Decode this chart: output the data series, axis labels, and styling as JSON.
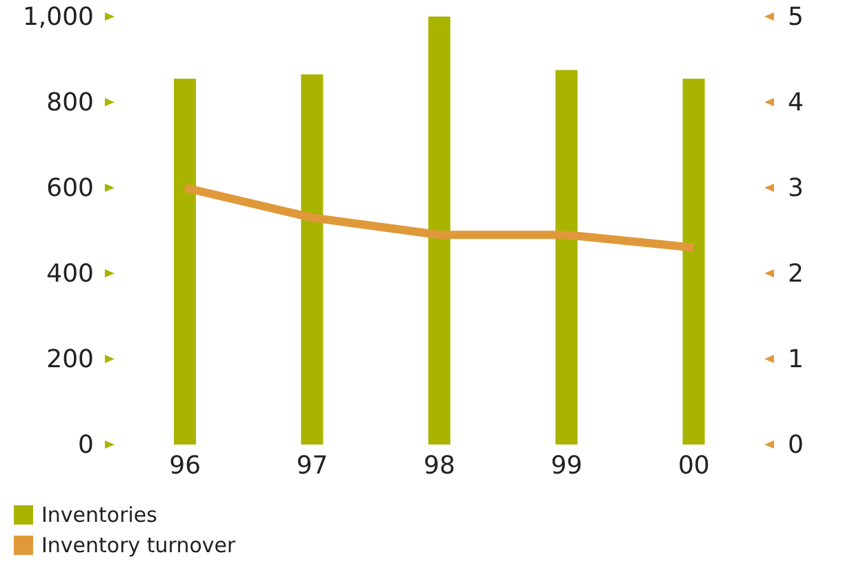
{
  "chart_data": {
    "type": "bar",
    "categories": [
      "96",
      "97",
      "98",
      "99",
      "00"
    ],
    "series": [
      {
        "name": "Inventories",
        "color": "#a8b400",
        "values": [
          855,
          865,
          1000,
          875,
          855
        ]
      },
      {
        "name": "Inventory turnover",
        "type": "line",
        "axis": "y2",
        "color": "#e0993a",
        "values": [
          3.0,
          2.65,
          2.45,
          2.45,
          2.3
        ]
      }
    ],
    "ylim": [
      0,
      1000
    ],
    "yticks": [
      0,
      200,
      400,
      600,
      800,
      {
        "value": 1000,
        "label": "1,000"
      }
    ],
    "y2lim": [
      0,
      5
    ],
    "y2ticks": [
      0,
      1,
      2,
      3,
      4,
      5
    ],
    "grid": false,
    "legend": "bottom left",
    "marker": "none"
  }
}
